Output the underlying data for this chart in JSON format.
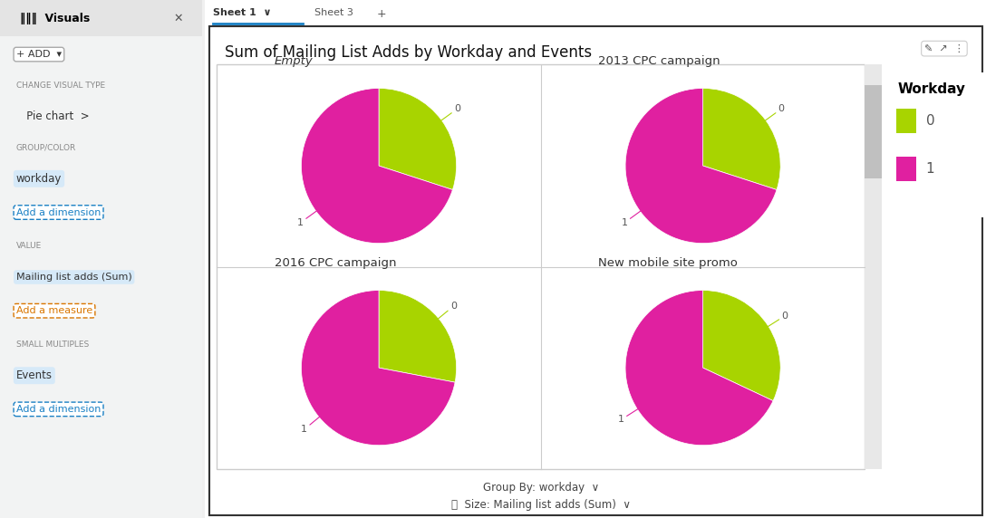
{
  "title": "Sum of Mailing List Adds by Workday and Events",
  "charts": [
    {
      "label": "Empty",
      "values": [
        30,
        70
      ],
      "italic_title": true
    },
    {
      "label": "2013 CPC campaign",
      "values": [
        30,
        70
      ],
      "italic_title": false
    },
    {
      "label": "2016 CPC campaign",
      "values": [
        28,
        72
      ],
      "italic_title": false
    },
    {
      "label": "New mobile site promo",
      "values": [
        32,
        68
      ],
      "italic_title": false
    }
  ],
  "colors": [
    "#a8d400",
    "#e020a0"
  ],
  "legend_title": "Workday",
  "legend_labels": [
    "0",
    "1"
  ],
  "slice_labels": [
    "0",
    "1"
  ],
  "bg_color": "#ffffff",
  "sidebar_bg": "#f2f3f3",
  "title_fontsize": 12,
  "label_fontsize": 9.5,
  "legend_fontsize": 11,
  "panel_border_color": "#cccccc",
  "divider_color": "#cccccc"
}
